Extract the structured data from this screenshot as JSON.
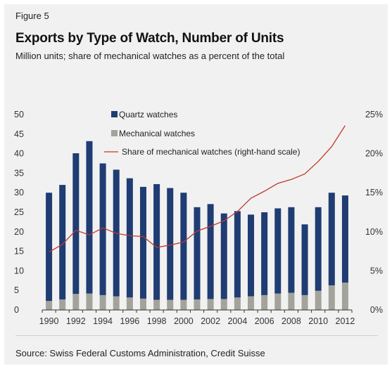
{
  "figure_label": "Figure 5",
  "source": "Source: Swiss Federal Customs Administration, Credit Suisse",
  "chart_data": {
    "type": "bar",
    "title": "Exports by Type of Watch, Number of Units",
    "subtitle": "Million units; share of mechanical watches as a percent of the total",
    "stacked": true,
    "categories": [
      "1990",
      "1991",
      "1992",
      "1993",
      "1994",
      "1995",
      "1996",
      "1997",
      "1998",
      "1999",
      "2000",
      "2001",
      "2002",
      "2003",
      "2004",
      "2005",
      "2006",
      "2007",
      "2008",
      "2009",
      "2010",
      "2011",
      "2012"
    ],
    "x_tick_labels": [
      "1990",
      "1992",
      "1994",
      "1996",
      "1998",
      "2000",
      "2002",
      "2004",
      "2006",
      "2008",
      "2010",
      "2012"
    ],
    "series": [
      {
        "name": "Quartz watches",
        "type": "bar",
        "axis": "left",
        "color": "#1f3c73",
        "values": [
          27.7,
          29.3,
          36.0,
          39.0,
          33.7,
          32.4,
          30.5,
          28.6,
          29.6,
          28.6,
          27.4,
          23.6,
          24.3,
          21.9,
          22.1,
          20.9,
          21.2,
          21.8,
          21.9,
          18.1,
          21.4,
          23.7,
          22.3
        ]
      },
      {
        "name": "Mechanical watches",
        "type": "bar",
        "axis": "left",
        "color": "#a3a39b",
        "values": [
          2.3,
          2.7,
          4.1,
          4.2,
          3.8,
          3.5,
          3.2,
          2.9,
          2.6,
          2.6,
          2.6,
          2.7,
          2.8,
          2.8,
          3.2,
          3.5,
          3.8,
          4.2,
          4.4,
          3.8,
          4.9,
          6.3,
          7.0
        ]
      },
      {
        "name": "Share of mechanical watches (right-hand scale)",
        "type": "line",
        "axis": "right",
        "color": "#c0392b",
        "values": [
          7.4,
          8.4,
          10.2,
          9.6,
          10.5,
          9.8,
          9.5,
          9.4,
          8.0,
          8.3,
          8.7,
          10.1,
          10.7,
          11.4,
          12.6,
          14.3,
          15.2,
          16.2,
          16.7,
          17.4,
          19.0,
          20.9,
          23.6
        ]
      }
    ],
    "ylim": [
      0,
      50
    ],
    "y_ticks": [
      0,
      5,
      10,
      15,
      20,
      25,
      30,
      35,
      40,
      45,
      50
    ],
    "y2lim": [
      0,
      25
    ],
    "y2_ticks": [
      "0%",
      "5%",
      "10%",
      "15%",
      "20%",
      "25%"
    ],
    "xlabel": "",
    "ylabel": "",
    "y2label": "",
    "legend_position": "top-center",
    "grid": false
  }
}
